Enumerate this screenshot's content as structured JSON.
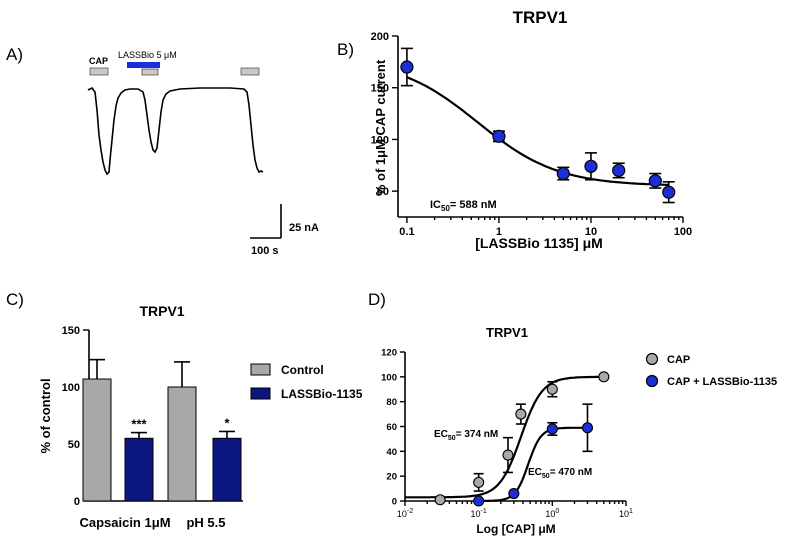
{
  "panel_labels": {
    "a": "A)",
    "b": "B)",
    "c": "C)",
    "d": "D)"
  },
  "panel_a": {
    "cap_label": "CAP",
    "lassbio_label": "LASSBio 5 μM",
    "scale_current": "25 nA",
    "scale_time": "100 s"
  },
  "colors": {
    "blue": "#1a2fd6",
    "navy": "#0c1680",
    "grey": "#a8a8a8",
    "light_grey": "#c8c8c8"
  },
  "chart_data": [
    {
      "id": "B",
      "type": "scatter",
      "title": "TRPV1",
      "xlabel": "[LASSBio 1135] μM",
      "ylabel": "% of 1μM CAP current",
      "xscale": "log",
      "xlim": [
        0.08,
        100
      ],
      "ylim": [
        25,
        200
      ],
      "xticks": [
        0.1,
        1,
        10,
        100
      ],
      "xtick_labels": [
        "0.1",
        "1",
        "10",
        "100"
      ],
      "yticks": [
        50,
        100,
        150,
        200
      ],
      "annotation": "IC50= 588 nM",
      "fit": {
        "top": 178,
        "bottom": 55,
        "ic50": 0.588,
        "hill": 1
      },
      "series": [
        {
          "x": [
            0.1,
            1,
            5,
            10,
            20,
            50,
            70
          ],
          "y": [
            170,
            103,
            67,
            74,
            70,
            60,
            49
          ],
          "err": [
            18,
            5,
            6,
            13,
            7,
            7,
            10
          ]
        }
      ]
    },
    {
      "id": "C",
      "type": "bar",
      "title": "TRPV1",
      "ylabel": "% of control",
      "ylim": [
        0,
        150
      ],
      "yticks": [
        0,
        50,
        100,
        150
      ],
      "categories": [
        "Capsaicin 1μM",
        "pH 5.5"
      ],
      "legend": [
        "Control",
        "LASSBio-1135"
      ],
      "series": [
        {
          "name": "Control",
          "values": [
            107,
            100
          ],
          "err": [
            17,
            22
          ]
        },
        {
          "name": "LASSBio-1135",
          "values": [
            55,
            55
          ],
          "err": [
            5,
            6
          ]
        }
      ],
      "significance": [
        "***",
        "*"
      ]
    },
    {
      "id": "D",
      "type": "scatter",
      "title": "TRPV1",
      "xlabel": "Log [CAP] μM",
      "ylabel": "",
      "xscale": "log",
      "xlim": [
        0.01,
        10
      ],
      "ylim": [
        0,
        120
      ],
      "xticks": [
        0.01,
        0.1,
        1,
        10
      ],
      "yticks": [
        0,
        20,
        40,
        60,
        80,
        100,
        120
      ],
      "annotations": [
        "EC50= 374 nM",
        "EC50= 470 nM"
      ],
      "series": [
        {
          "name": "CAP",
          "x": [
            0.03,
            0.1,
            0.25,
            0.374,
            1.0,
            5.0
          ],
          "y": [
            1,
            15,
            37,
            70,
            90,
            100
          ],
          "err": [
            0,
            7,
            14,
            8,
            6,
            0
          ],
          "fit": {
            "top": 100,
            "bottom": 3,
            "ec50": 0.374,
            "hill": 3
          }
        },
        {
          "name": "CAP + LASSBio-1135",
          "x": [
            0.1,
            0.3,
            1.0,
            3.0
          ],
          "y": [
            0,
            6,
            58,
            59
          ],
          "err": [
            0,
            0,
            5,
            19
          ],
          "fit": {
            "top": 59,
            "bottom": 0,
            "ec50": 0.47,
            "hill": 5
          }
        }
      ]
    }
  ]
}
